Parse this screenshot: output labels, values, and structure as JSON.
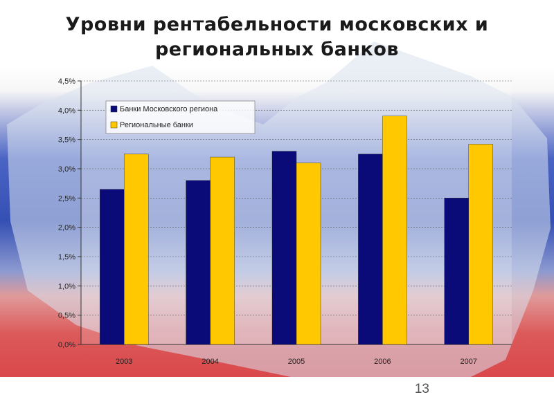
{
  "slide": {
    "title_line1": "Уровни рентабельности московских и",
    "title_line2": "региональных банков",
    "page_number": "13"
  },
  "colors": {
    "moscow": "#0a0a78",
    "regional": "#ffc800",
    "flag_white": "#f4f4f4",
    "flag_blue": "#3a55b8",
    "flag_red": "#d8474a"
  },
  "chart_data": {
    "type": "bar",
    "categories": [
      "2003",
      "2004",
      "2005",
      "2006",
      "2007"
    ],
    "series": [
      {
        "name": "Банки Московского региона",
        "values": [
          2.65,
          2.8,
          3.3,
          3.25,
          2.5
        ]
      },
      {
        "name": "Региональные банки",
        "values": [
          3.25,
          3.2,
          3.1,
          3.9,
          3.42
        ]
      }
    ],
    "yticks": [
      "0,0%",
      "0,5%",
      "1,0%",
      "1,5%",
      "2,0%",
      "2,5%",
      "3,0%",
      "3,5%",
      "4,0%",
      "4,5%"
    ],
    "ylim": [
      0,
      4.5
    ],
    "grid": true,
    "legend": "top-left"
  }
}
